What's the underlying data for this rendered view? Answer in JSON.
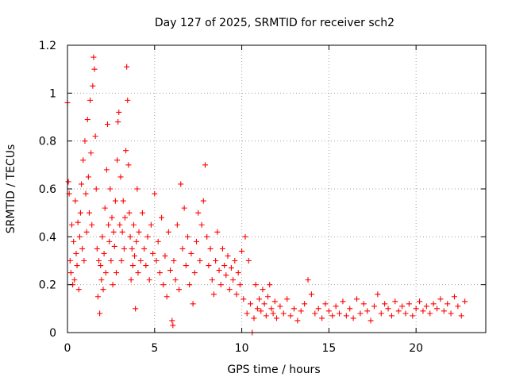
{
  "chart_data": {
    "type": "scatter",
    "title": "Day 127 of 2025, SRMTID for receiver sch2",
    "xlabel": "GPS time / hours",
    "ylabel": "SRMTID / TECUs",
    "xlim": [
      0,
      24
    ],
    "ylim": [
      0,
      1.2
    ],
    "x_ticks": [
      0,
      5,
      10,
      15,
      20
    ],
    "x_tick_labels": [
      "0",
      "5",
      "10",
      "15",
      "20"
    ],
    "y_ticks": [
      0,
      0.2,
      0.4,
      0.6,
      0.8,
      1.0,
      1.2
    ],
    "y_tick_labels": [
      "0",
      "0.2",
      "0.4",
      "0.6",
      "0.8",
      "1",
      "1.2"
    ],
    "grid": true,
    "legend": "none",
    "marker": "plus",
    "series": [
      {
        "name": "SRMTID sch2",
        "color": "#ff0000",
        "points": [
          [
            0.0,
            0.96
          ],
          [
            0.05,
            0.63
          ],
          [
            0.1,
            0.58
          ],
          [
            0.15,
            0.3
          ],
          [
            0.2,
            0.25
          ],
          [
            0.25,
            0.45
          ],
          [
            0.3,
            0.2
          ],
          [
            0.35,
            0.38
          ],
          [
            0.4,
            0.22
          ],
          [
            0.45,
            0.55
          ],
          [
            0.5,
            0.33
          ],
          [
            0.55,
            0.28
          ],
          [
            0.6,
            0.46
          ],
          [
            0.65,
            0.18
          ],
          [
            0.7,
            0.4
          ],
          [
            0.75,
            0.5
          ],
          [
            0.8,
            0.62
          ],
          [
            0.85,
            0.35
          ],
          [
            0.9,
            0.72
          ],
          [
            0.95,
            0.3
          ],
          [
            1.0,
            0.8
          ],
          [
            1.05,
            0.58
          ],
          [
            1.1,
            0.42
          ],
          [
            1.15,
            0.89
          ],
          [
            1.2,
            0.65
          ],
          [
            1.25,
            0.5
          ],
          [
            1.3,
            0.97
          ],
          [
            1.35,
            0.75
          ],
          [
            1.4,
            0.45
          ],
          [
            1.45,
            1.03
          ],
          [
            1.5,
            1.15
          ],
          [
            1.55,
            1.1
          ],
          [
            1.6,
            0.82
          ],
          [
            1.65,
            0.6
          ],
          [
            1.7,
            0.35
          ],
          [
            1.75,
            0.15
          ],
          [
            1.8,
            0.3
          ],
          [
            1.85,
            0.08
          ],
          [
            1.9,
            0.28
          ],
          [
            1.95,
            0.22
          ],
          [
            2.0,
            0.4
          ],
          [
            2.05,
            0.18
          ],
          [
            2.1,
            0.33
          ],
          [
            2.15,
            0.52
          ],
          [
            2.2,
            0.25
          ],
          [
            2.25,
            0.68
          ],
          [
            2.3,
            0.87
          ],
          [
            2.35,
            0.45
          ],
          [
            2.4,
            0.38
          ],
          [
            2.45,
            0.6
          ],
          [
            2.5,
            0.3
          ],
          [
            2.55,
            0.48
          ],
          [
            2.6,
            0.2
          ],
          [
            2.65,
            0.42
          ],
          [
            2.7,
            0.36
          ],
          [
            2.75,
            0.55
          ],
          [
            2.8,
            0.25
          ],
          [
            2.85,
            0.72
          ],
          [
            2.9,
            0.88
          ],
          [
            2.95,
            0.92
          ],
          [
            3.0,
            0.45
          ],
          [
            3.05,
            0.65
          ],
          [
            3.1,
            0.3
          ],
          [
            3.15,
            0.42
          ],
          [
            3.2,
            0.55
          ],
          [
            3.25,
            0.35
          ],
          [
            3.3,
            0.48
          ],
          [
            3.35,
            0.76
          ],
          [
            3.4,
            1.11
          ],
          [
            3.45,
            0.97
          ],
          [
            3.5,
            0.7
          ],
          [
            3.55,
            0.5
          ],
          [
            3.6,
            0.4
          ],
          [
            3.65,
            0.22
          ],
          [
            3.7,
            0.35
          ],
          [
            3.75,
            0.28
          ],
          [
            3.8,
            0.45
          ],
          [
            3.85,
            0.32
          ],
          [
            3.9,
            0.1
          ],
          [
            3.95,
            0.38
          ],
          [
            4.0,
            0.6
          ],
          [
            4.05,
            0.25
          ],
          [
            4.1,
            0.42
          ],
          [
            4.2,
            0.3
          ],
          [
            4.3,
            0.5
          ],
          [
            4.4,
            0.35
          ],
          [
            4.5,
            0.28
          ],
          [
            4.6,
            0.4
          ],
          [
            4.7,
            0.22
          ],
          [
            4.8,
            0.45
          ],
          [
            4.9,
            0.33
          ],
          [
            5.0,
            0.58
          ],
          [
            5.1,
            0.3
          ],
          [
            5.2,
            0.38
          ],
          [
            5.3,
            0.25
          ],
          [
            5.4,
            0.48
          ],
          [
            5.5,
            0.2
          ],
          [
            5.6,
            0.32
          ],
          [
            5.7,
            0.15
          ],
          [
            5.8,
            0.42
          ],
          [
            5.9,
            0.26
          ],
          [
            6.0,
            0.05
          ],
          [
            6.05,
            0.03
          ],
          [
            6.1,
            0.3
          ],
          [
            6.2,
            0.22
          ],
          [
            6.3,
            0.45
          ],
          [
            6.4,
            0.18
          ],
          [
            6.5,
            0.62
          ],
          [
            6.6,
            0.35
          ],
          [
            6.7,
            0.52
          ],
          [
            6.8,
            0.28
          ],
          [
            6.9,
            0.4
          ],
          [
            7.0,
            0.2
          ],
          [
            7.1,
            0.33
          ],
          [
            7.2,
            0.12
          ],
          [
            7.3,
            0.25
          ],
          [
            7.4,
            0.38
          ],
          [
            7.5,
            0.5
          ],
          [
            7.6,
            0.3
          ],
          [
            7.7,
            0.45
          ],
          [
            7.8,
            0.55
          ],
          [
            7.9,
            0.7
          ],
          [
            8.0,
            0.4
          ],
          [
            8.1,
            0.28
          ],
          [
            8.2,
            0.35
          ],
          [
            8.3,
            0.22
          ],
          [
            8.4,
            0.16
          ],
          [
            8.5,
            0.3
          ],
          [
            8.6,
            0.42
          ],
          [
            8.7,
            0.26
          ],
          [
            8.8,
            0.2
          ],
          [
            8.9,
            0.35
          ],
          [
            9.0,
            0.28
          ],
          [
            9.1,
            0.24
          ],
          [
            9.2,
            0.32
          ],
          [
            9.3,
            0.18
          ],
          [
            9.4,
            0.27
          ],
          [
            9.5,
            0.22
          ],
          [
            9.6,
            0.3
          ],
          [
            9.7,
            0.16
          ],
          [
            9.8,
            0.25
          ],
          [
            9.9,
            0.2
          ],
          [
            10.0,
            0.34
          ],
          [
            10.1,
            0.14
          ],
          [
            10.2,
            0.4
          ],
          [
            10.3,
            0.08
          ],
          [
            10.4,
            0.3
          ],
          [
            10.5,
            0.12
          ],
          [
            10.6,
            -0.01
          ],
          [
            10.7,
            0.06
          ],
          [
            10.8,
            0.2
          ],
          [
            10.9,
            0.1
          ],
          [
            11.0,
            0.14
          ],
          [
            11.1,
            0.09
          ],
          [
            11.2,
            0.18
          ],
          [
            11.3,
            0.12
          ],
          [
            11.4,
            0.07
          ],
          [
            11.5,
            0.15
          ],
          [
            11.6,
            0.2
          ],
          [
            11.7,
            0.1
          ],
          [
            11.8,
            0.08
          ],
          [
            11.9,
            0.13
          ],
          [
            12.0,
            0.06
          ],
          [
            12.2,
            0.11
          ],
          [
            12.4,
            0.08
          ],
          [
            12.6,
            0.14
          ],
          [
            12.8,
            0.07
          ],
          [
            13.0,
            0.1
          ],
          [
            13.2,
            0.05
          ],
          [
            13.4,
            0.09
          ],
          [
            13.6,
            0.12
          ],
          [
            13.8,
            0.22
          ],
          [
            14.0,
            0.16
          ],
          [
            14.2,
            0.08
          ],
          [
            14.4,
            0.1
          ],
          [
            14.6,
            0.06
          ],
          [
            14.8,
            0.12
          ],
          [
            15.0,
            0.09
          ],
          [
            15.2,
            0.07
          ],
          [
            15.4,
            0.11
          ],
          [
            15.6,
            0.08
          ],
          [
            15.8,
            0.13
          ],
          [
            16.0,
            0.07
          ],
          [
            16.2,
            0.1
          ],
          [
            16.4,
            0.06
          ],
          [
            16.6,
            0.14
          ],
          [
            16.8,
            0.08
          ],
          [
            17.0,
            0.12
          ],
          [
            17.2,
            0.09
          ],
          [
            17.4,
            0.05
          ],
          [
            17.6,
            0.11
          ],
          [
            17.8,
            0.16
          ],
          [
            18.0,
            0.08
          ],
          [
            18.2,
            0.12
          ],
          [
            18.4,
            0.1
          ],
          [
            18.6,
            0.07
          ],
          [
            18.8,
            0.13
          ],
          [
            19.0,
            0.09
          ],
          [
            19.2,
            0.11
          ],
          [
            19.4,
            0.08
          ],
          [
            19.6,
            0.12
          ],
          [
            19.8,
            0.07
          ],
          [
            20.0,
            0.1
          ],
          [
            20.2,
            0.13
          ],
          [
            20.4,
            0.09
          ],
          [
            20.6,
            0.11
          ],
          [
            20.8,
            0.08
          ],
          [
            21.0,
            0.12
          ],
          [
            21.2,
            0.1
          ],
          [
            21.4,
            0.14
          ],
          [
            21.6,
            0.09
          ],
          [
            21.8,
            0.12
          ],
          [
            22.0,
            0.08
          ],
          [
            22.2,
            0.15
          ],
          [
            22.4,
            0.11
          ],
          [
            22.6,
            0.07
          ],
          [
            22.8,
            0.13
          ]
        ]
      }
    ]
  }
}
